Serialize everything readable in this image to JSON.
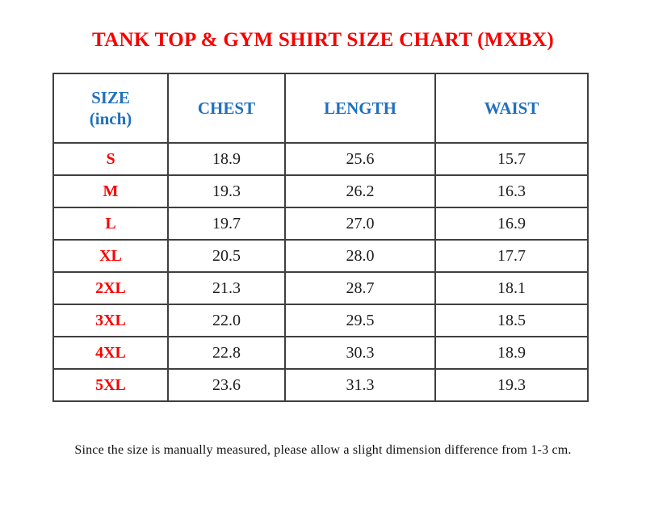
{
  "page": {
    "title": "TANK TOP & GYM SHIRT SIZE CHART (MXBX)",
    "footnote": "Since the size is manually measured, please allow a slight dimension difference from 1-3 cm."
  },
  "colors": {
    "title_red": "#f60000",
    "header_blue": "#2071bd",
    "size_label_red": "#fa0000",
    "value_black": "#1c1c1c",
    "table_border": "#3f3f3f",
    "background": "#ffffff"
  },
  "header": {
    "size_top": "SIZE",
    "size_bottom": "(inch)",
    "chest": "CHEST",
    "length": "LENGTH",
    "waist": "WAIST"
  },
  "chart_data": {
    "type": "table",
    "title": "TANK TOP & GYM SHIRT SIZE CHART (MXBX)",
    "unit": "inch",
    "columns": [
      "SIZE (inch)",
      "CHEST",
      "LENGTH",
      "WAIST"
    ],
    "rows": [
      [
        "S",
        "18.9",
        "25.6",
        "15.7"
      ],
      [
        "M",
        "19.3",
        "26.2",
        "16.3"
      ],
      [
        "L",
        "19.7",
        "27.0",
        "16.9"
      ],
      [
        "XL",
        "20.5",
        "28.0",
        "17.7"
      ],
      [
        "2XL",
        "21.3",
        "28.7",
        "18.1"
      ],
      [
        "3XL",
        "22.0",
        "29.5",
        "18.5"
      ],
      [
        "4XL",
        "22.8",
        "30.3",
        "18.9"
      ],
      [
        "5XL",
        "23.6",
        "31.3",
        "19.3"
      ]
    ],
    "footnote": "Since the size is manually measured, please allow a slight dimension difference from 1-3 cm."
  }
}
